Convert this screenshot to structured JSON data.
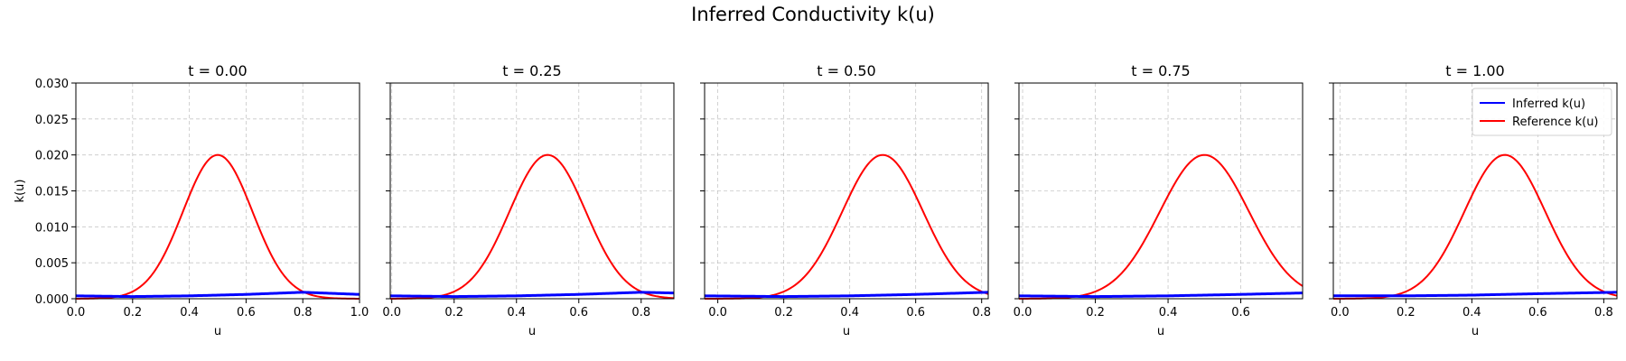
{
  "figure": {
    "suptitle": "Inferred Conductivity k(u)"
  },
  "colors": {
    "inferred": "#0000ff",
    "reference": "#ff0000",
    "grid": "#b0b0b0"
  },
  "chart_data": [
    {
      "type": "line",
      "title": "t = 0.00",
      "xlabel": "u",
      "ylabel": "k(u)",
      "xlim": [
        0.0,
        1.0
      ],
      "ylim": [
        0.0,
        0.03
      ],
      "xticks": [
        "0.0",
        "0.2",
        "0.4",
        "0.6",
        "0.8",
        "1.0"
      ],
      "yticks": [
        "0.000",
        "0.005",
        "0.010",
        "0.015",
        "0.020",
        "0.025",
        "0.030"
      ],
      "grid": true,
      "series": [
        {
          "name": "Inferred k(u)",
          "x": [
            0.0,
            0.2,
            0.4,
            0.6,
            0.8,
            1.0
          ],
          "values": [
            0.0004,
            0.0003,
            0.0004,
            0.0006,
            0.0009,
            0.0006
          ]
        },
        {
          "name": "Reference k(u)",
          "function": "0.02*exp(-(u-0.5)^2/0.03)",
          "x": [
            0.0,
            0.1,
            0.2,
            0.3,
            0.4,
            0.5,
            0.6,
            0.7,
            0.8,
            0.9,
            1.0
          ],
          "values": [
            0.0001,
            0.0009,
            0.0041,
            0.0105,
            0.0179,
            0.02,
            0.0179,
            0.0105,
            0.0041,
            0.0009,
            0.0001
          ]
        }
      ]
    },
    {
      "type": "line",
      "title": "t = 0.25",
      "xlabel": "u",
      "xlim": [
        -0.005,
        0.905
      ],
      "ylim": [
        0.0,
        0.03
      ],
      "xticks": [
        "0.0",
        "0.2",
        "0.4",
        "0.6",
        "0.8"
      ],
      "grid": true,
      "series": [
        {
          "name": "Inferred k(u)",
          "x": [
            0.0,
            0.2,
            0.4,
            0.6,
            0.8,
            0.9
          ],
          "values": [
            0.0004,
            0.0003,
            0.0004,
            0.0006,
            0.0009,
            0.0008
          ]
        },
        {
          "name": "Reference k(u)",
          "x": [
            0.0,
            0.1,
            0.2,
            0.3,
            0.4,
            0.5,
            0.6,
            0.7,
            0.8,
            0.9
          ],
          "values": [
            0.0001,
            0.0009,
            0.0041,
            0.0105,
            0.0179,
            0.02,
            0.0179,
            0.0105,
            0.0041,
            0.0009
          ]
        }
      ]
    },
    {
      "type": "line",
      "title": "t = 0.50",
      "xlabel": "u",
      "xlim": [
        -0.04,
        0.82
      ],
      "ylim": [
        0.0,
        0.03
      ],
      "xticks": [
        "0.0",
        "0.2",
        "0.4",
        "0.6",
        "0.8"
      ],
      "grid": true,
      "series": [
        {
          "name": "Inferred k(u)",
          "x": [
            -0.04,
            0.2,
            0.4,
            0.6,
            0.82
          ],
          "values": [
            0.0004,
            0.0003,
            0.0004,
            0.0006,
            0.0009
          ]
        },
        {
          "name": "Reference k(u)",
          "x": [
            -0.04,
            0.1,
            0.2,
            0.3,
            0.4,
            0.5,
            0.6,
            0.7,
            0.82
          ],
          "values": [
            0.0001,
            0.0009,
            0.0041,
            0.0105,
            0.0179,
            0.02,
            0.0179,
            0.0105,
            0.0026
          ]
        }
      ]
    },
    {
      "type": "line",
      "title": "t = 0.75",
      "xlabel": "u",
      "xlim": [
        -0.01,
        0.77
      ],
      "ylim": [
        0.0,
        0.03
      ],
      "xticks": [
        "0.0",
        "0.2",
        "0.4",
        "0.6"
      ],
      "grid": true,
      "series": [
        {
          "name": "Inferred k(u)",
          "x": [
            -0.01,
            0.2,
            0.4,
            0.6,
            0.77
          ],
          "values": [
            0.0004,
            0.0003,
            0.0004,
            0.0006,
            0.0008
          ]
        },
        {
          "name": "Reference k(u)",
          "x": [
            -0.01,
            0.1,
            0.2,
            0.3,
            0.4,
            0.5,
            0.6,
            0.7,
            0.77
          ],
          "values": [
            0.0001,
            0.0009,
            0.0041,
            0.0105,
            0.0179,
            0.02,
            0.0179,
            0.0105,
            0.0053
          ]
        }
      ]
    },
    {
      "type": "line",
      "title": "t = 1.00",
      "xlabel": "u",
      "xlim": [
        -0.02,
        0.84
      ],
      "ylim": [
        0.0,
        0.03
      ],
      "xticks": [
        "0.0",
        "0.2",
        "0.4",
        "0.6",
        "0.8"
      ],
      "grid": true,
      "legend": "top-right",
      "series": [
        {
          "name": "Inferred k(u)",
          "x": [
            -0.02,
            0.2,
            0.4,
            0.6,
            0.84
          ],
          "values": [
            0.0004,
            0.0004,
            0.0005,
            0.0007,
            0.0009
          ]
        },
        {
          "name": "Reference k(u)",
          "x": [
            -0.02,
            0.1,
            0.2,
            0.3,
            0.4,
            0.5,
            0.6,
            0.7,
            0.84
          ],
          "values": [
            0.0001,
            0.0009,
            0.0041,
            0.0105,
            0.0179,
            0.02,
            0.0179,
            0.0105,
            0.002
          ]
        }
      ]
    }
  ]
}
